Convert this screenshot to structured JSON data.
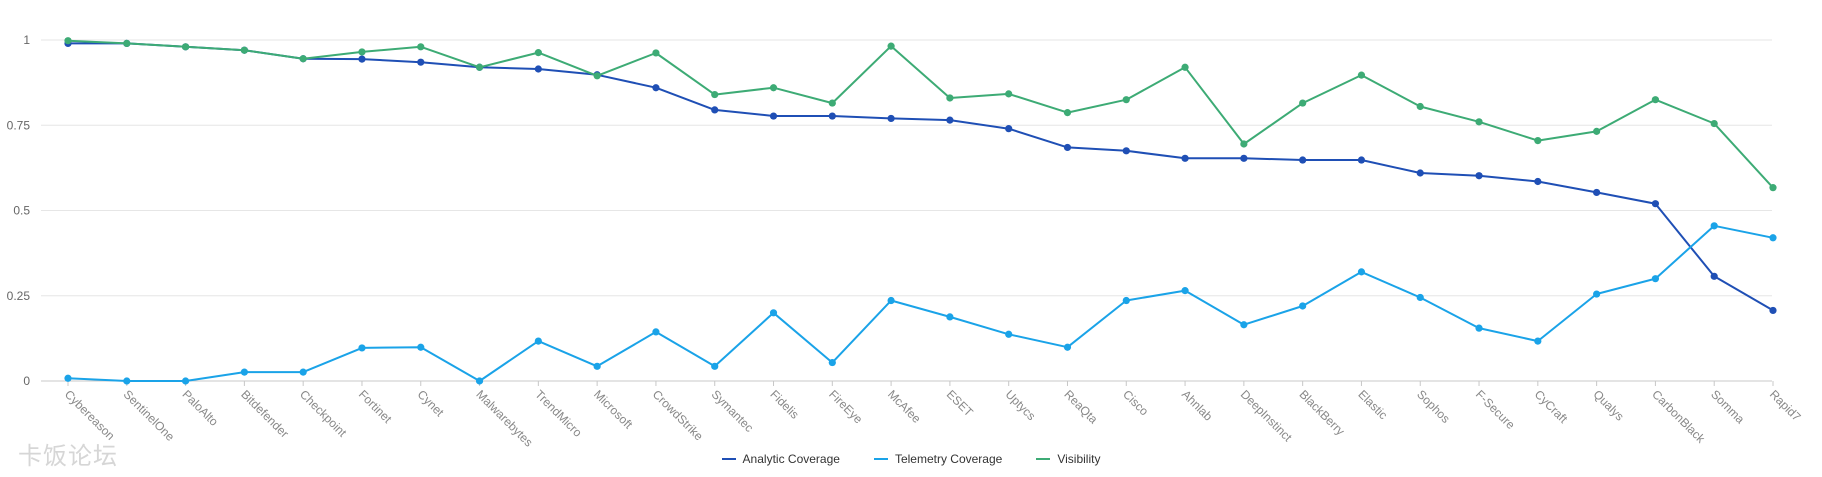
{
  "watermark": "卡饭论坛",
  "chart_data": {
    "type": "line",
    "title": "",
    "xlabel": "",
    "ylabel": "",
    "ylim": [
      0,
      1
    ],
    "yticks": [
      0,
      0.25,
      0.5,
      0.75,
      1
    ],
    "ytick_labels": [
      "0",
      "0.25",
      "0.5",
      "0.75",
      "1"
    ],
    "grid": true,
    "legend_position": "bottom",
    "categories": [
      "Cybereason",
      "SentinelOne",
      "PaloAlto",
      "Bitdefender",
      "Checkpoint",
      "Fortinet",
      "Cynet",
      "Malwarebytes",
      "TrendMicro",
      "Microsoft",
      "CrowdStrike",
      "Symantec",
      "Fidelis",
      "FireEye",
      "McAfee",
      "ESET",
      "Uptycs",
      "ReaQta",
      "Cisco",
      "Ahnlab",
      "DeepInstinct",
      "BlackBerry",
      "Elastic",
      "Sophos",
      "F-Secure",
      "CyCraft",
      "Qualys",
      "CarbonBlack",
      "Somma",
      "Rapid7"
    ],
    "series": [
      {
        "name": "Analytic Coverage",
        "color": "#1f4fb5",
        "values": [
          0.99,
          0.99,
          0.98,
          0.97,
          0.945,
          0.944,
          0.935,
          0.92,
          0.915,
          0.898,
          0.86,
          0.795,
          0.777,
          0.777,
          0.77,
          0.765,
          0.74,
          0.685,
          0.675,
          0.653,
          0.653,
          0.648,
          0.648,
          0.61,
          0.602,
          0.585,
          0.553,
          0.52,
          0.307,
          0.207
        ]
      },
      {
        "name": "Telemetry Coverage",
        "color": "#1aa3e8",
        "values": [
          0.008,
          0.0,
          0.0,
          0.026,
          0.026,
          0.097,
          0.099,
          0.0,
          0.117,
          0.043,
          0.144,
          0.043,
          0.2,
          0.054,
          0.236,
          0.188,
          0.137,
          0.099,
          0.236,
          0.265,
          0.165,
          0.22,
          0.32,
          0.245,
          0.155,
          0.117,
          0.255,
          0.3,
          0.455,
          0.42
        ]
      },
      {
        "name": "Visibility",
        "color": "#3dab75",
        "values": [
          0.998,
          0.99,
          0.98,
          0.97,
          0.945,
          0.965,
          0.98,
          0.92,
          0.963,
          0.895,
          0.962,
          0.84,
          0.86,
          0.815,
          0.982,
          0.83,
          0.842,
          0.787,
          0.825,
          0.92,
          0.695,
          0.815,
          0.897,
          0.805,
          0.76,
          0.705,
          0.732,
          0.825,
          0.755,
          0.567
        ]
      }
    ]
  }
}
